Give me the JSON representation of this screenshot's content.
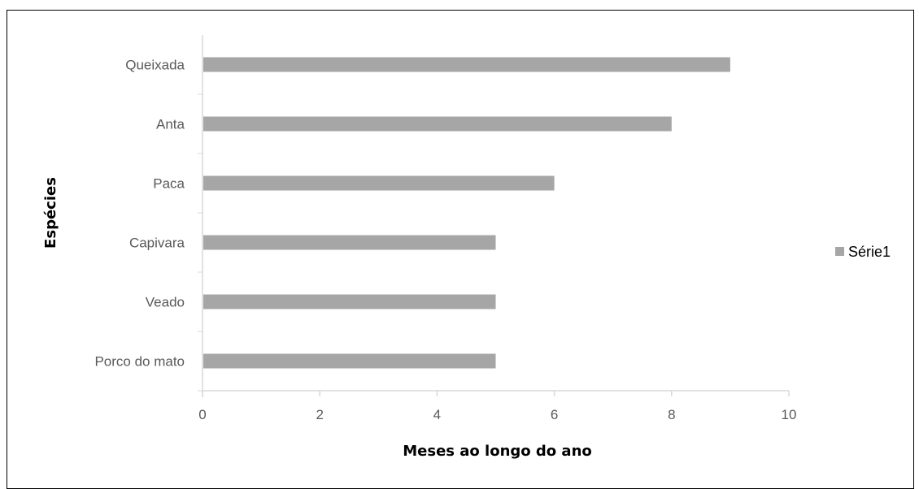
{
  "chart_data": {
    "type": "bar",
    "orientation": "horizontal",
    "categories": [
      "Porco do mato",
      "Veado",
      "Capivara",
      "Paca",
      "Anta",
      "Queixada"
    ],
    "series": [
      {
        "name": "Série1",
        "values": [
          5,
          5,
          5,
          6,
          8,
          9
        ],
        "color": "#a6a6a6"
      }
    ],
    "xlabel": "Meses ao longo do ano",
    "ylabel": "Espécies",
    "xlim": [
      0,
      10
    ],
    "xticks": [
      0,
      2,
      4,
      6,
      8,
      10
    ],
    "grid": false,
    "legend_position": "right"
  }
}
